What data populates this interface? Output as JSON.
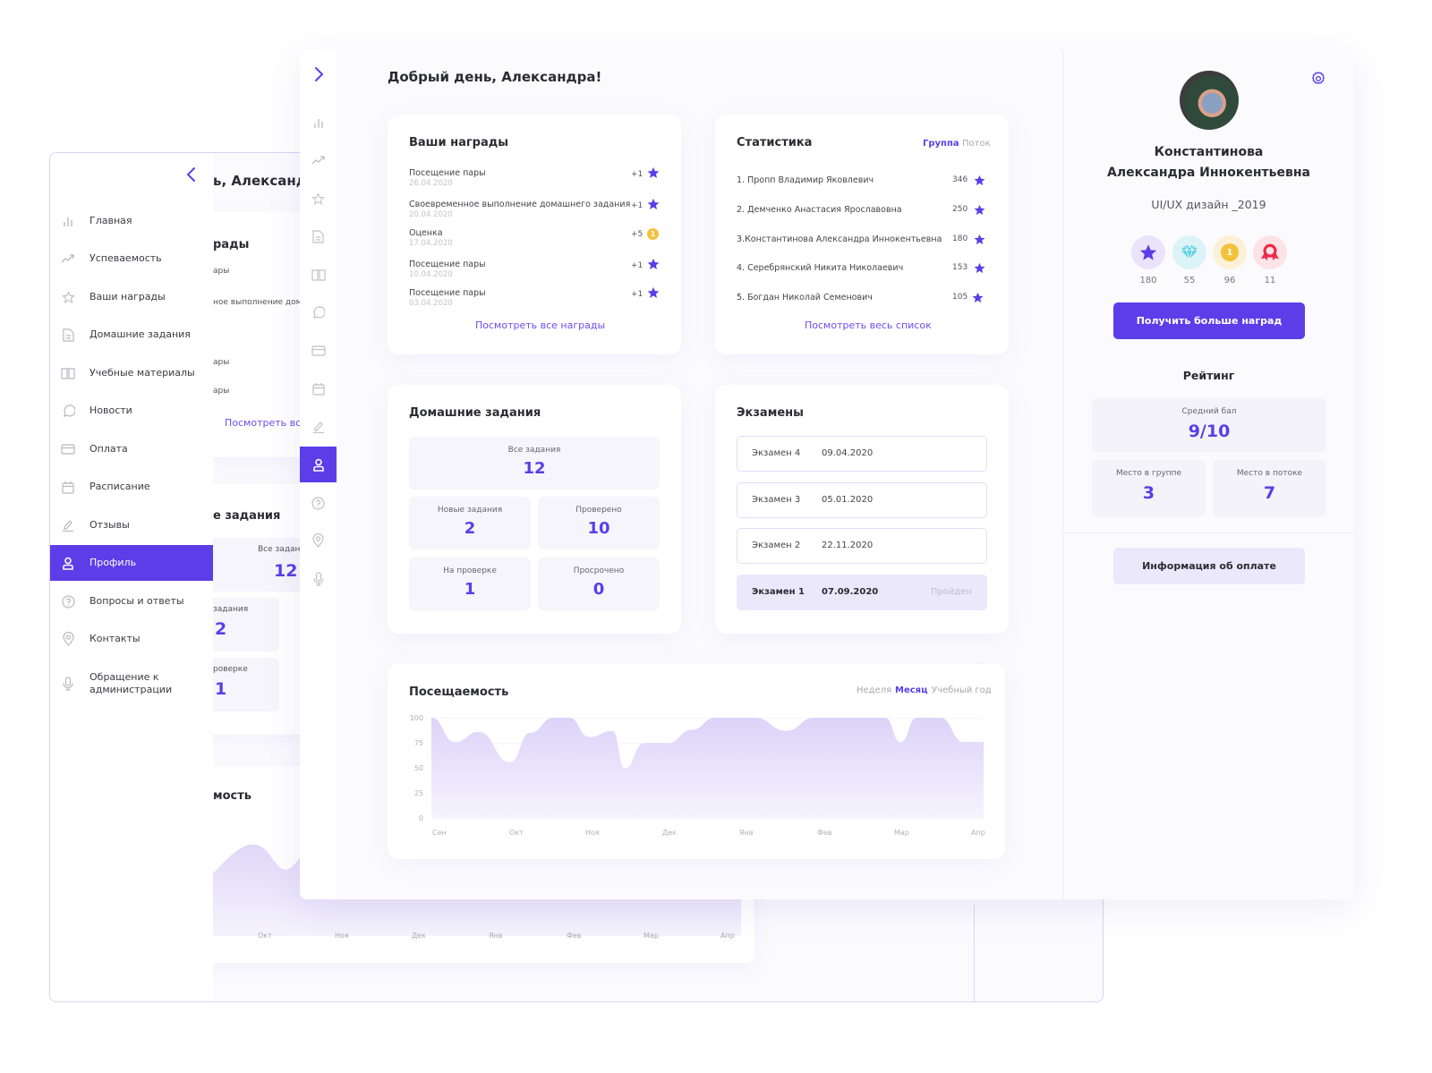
{
  "greeting": "Добрый день, Александра!",
  "back_greeting_fragment": "ь, Александр",
  "colors": {
    "accent": "#5b3ee8",
    "accent_light": "#ece8fb",
    "badge_star_bg": "#e9e4fb",
    "badge_gem_bg": "#dcf3f8",
    "badge_coin_bg": "#fcf1d8",
    "badge_ribbon_bg": "#fde3e6"
  },
  "sidebar": {
    "items": [
      {
        "label": "Главная",
        "icon": "bar-chart-icon"
      },
      {
        "label": "Успеваемость",
        "icon": "trend-icon"
      },
      {
        "label": "Ваши награды",
        "icon": "star-icon"
      },
      {
        "label": "Домашние задания",
        "icon": "document-icon"
      },
      {
        "label": "Учебные материалы",
        "icon": "book-icon"
      },
      {
        "label": "Новости",
        "icon": "chat-icon"
      },
      {
        "label": "Оплата",
        "icon": "card-icon"
      },
      {
        "label": "Расписание",
        "icon": "calendar-icon"
      },
      {
        "label": "Отзывы",
        "icon": "pencil-icon"
      },
      {
        "label": "Профиль",
        "icon": "user-icon",
        "active": true
      },
      {
        "label": "Вопросы и ответы",
        "icon": "question-icon"
      },
      {
        "label": "Контакты",
        "icon": "location-icon"
      },
      {
        "label": "Обращение к администрации",
        "label_line1": "Обращение к",
        "label_line2": "администрации",
        "icon": "microphone-icon"
      }
    ]
  },
  "awards": {
    "title": "Ваши награды",
    "items": [
      {
        "name": "Посещение пары",
        "date": "26.04.2020",
        "points": "+1",
        "icon": "star"
      },
      {
        "name": "Своевременное выполнение домашнего задания",
        "date": "20.04.2020",
        "points": "+1",
        "icon": "star"
      },
      {
        "name": "Оценка",
        "date": "17.04.2020",
        "points": "+5",
        "icon": "coin"
      },
      {
        "name": "Посещение пары",
        "date": "10.04.2020",
        "points": "+1",
        "icon": "star"
      },
      {
        "name": "Посещение пары",
        "date": "03.04.2020",
        "points": "+1",
        "icon": "star"
      }
    ],
    "link": "Посмотреть все награды",
    "back_link": "Посмотреть все",
    "back_title_fragment": "рады",
    "back_rows": [
      "ары",
      "ное выполнение домо",
      "ары",
      "ары"
    ]
  },
  "stats": {
    "title": "Статистика",
    "tabs": [
      {
        "label": "Группа",
        "active": true
      },
      {
        "label": "Поток",
        "active": false
      }
    ],
    "items": [
      {
        "name": "1. Пропп  Владимир Яковлевич",
        "score": "346"
      },
      {
        "name": "2. Демченко Анастасия Ярославовна",
        "score": "250"
      },
      {
        "name": "3.Константинова Александра Иннокентьевна",
        "score": "180"
      },
      {
        "name": "4. Серебрянский Никита Николаевич",
        "score": "153"
      },
      {
        "name": "5. Богдан Николай Семенович",
        "score": "105"
      }
    ],
    "link": "Посмотреть весь список"
  },
  "homework": {
    "title": "Домашние задания",
    "back_title_fragment": "е задания",
    "all": {
      "label": "Все задания",
      "value": "12",
      "back_label": "Все задан"
    },
    "new": {
      "label": "Новые задания",
      "value": "2",
      "back_label": "задания"
    },
    "checked": {
      "label": "Проверено",
      "value": "10"
    },
    "review": {
      "label": "На проверке",
      "value": "1",
      "back_label": "роверке"
    },
    "overdue": {
      "label": "Просрочено",
      "value": "0"
    }
  },
  "exams": {
    "title": "Экзамены",
    "items": [
      {
        "name": "Экзамен 4",
        "date": "09.04.2020",
        "status": ""
      },
      {
        "name": "Экзамен 3",
        "date": "05.01.2020",
        "status": ""
      },
      {
        "name": "Экзамен 2",
        "date": "22.11.2020",
        "status": ""
      },
      {
        "name": "Экзамен 1",
        "date": "07.09.2020",
        "status": "Пройден"
      }
    ]
  },
  "attendance": {
    "title": "Посещаемость",
    "back_title_fragment": "мость",
    "tabs": [
      {
        "label": "Неделя",
        "active": false
      },
      {
        "label": "Месяц",
        "active": true
      },
      {
        "label": "Учебный год",
        "active": false
      }
    ]
  },
  "chart_data": {
    "type": "area",
    "title": "Посещаемость",
    "categories": [
      "Сен",
      "Окт",
      "Ноя",
      "Дек",
      "Янв",
      "Фев",
      "Мар",
      "Апр"
    ],
    "y_ticks": [
      "100",
      "75",
      "50",
      "25",
      "0"
    ],
    "ylim": [
      0,
      100
    ],
    "grid": true,
    "series": [
      {
        "name": "Посещаемость",
        "x": [
          0,
          0.3,
          0.6,
          1.0,
          1.25,
          1.55,
          1.75,
          2.0,
          2.3,
          2.45,
          2.7,
          2.85,
          3.0,
          3.3,
          3.6,
          4.1,
          4.5,
          4.85,
          5.25,
          5.75,
          5.95,
          6.15,
          6.45,
          6.75,
          7.0
        ],
        "values": [
          100,
          76,
          86,
          56,
          85,
          100,
          100,
          81,
          87,
          50,
          75,
          75,
          75,
          88,
          100,
          100,
          87,
          100,
          100,
          100,
          76,
          100,
          100,
          76,
          76
        ]
      }
    ],
    "legend": "none"
  },
  "profile": {
    "name_line1": "Константинова",
    "name_line2": "Александра Иннокентьевна",
    "group": "UI/UX дизайн _2019",
    "badges": [
      {
        "type": "star",
        "count": "180"
      },
      {
        "type": "gem",
        "count": "55"
      },
      {
        "type": "coin",
        "count": "96",
        "coin_text": "1"
      },
      {
        "type": "ribbon",
        "count": "11"
      }
    ],
    "more_awards_button": "Получить больше наград",
    "rating_title": "Рейтинг",
    "avg": {
      "label": "Средний бал",
      "value": "9/10"
    },
    "group_place": {
      "label": "Место в группе",
      "value": "3"
    },
    "stream_place": {
      "label": "Место в потоке",
      "value": "7"
    },
    "payment_button": "Информация об оплате"
  }
}
